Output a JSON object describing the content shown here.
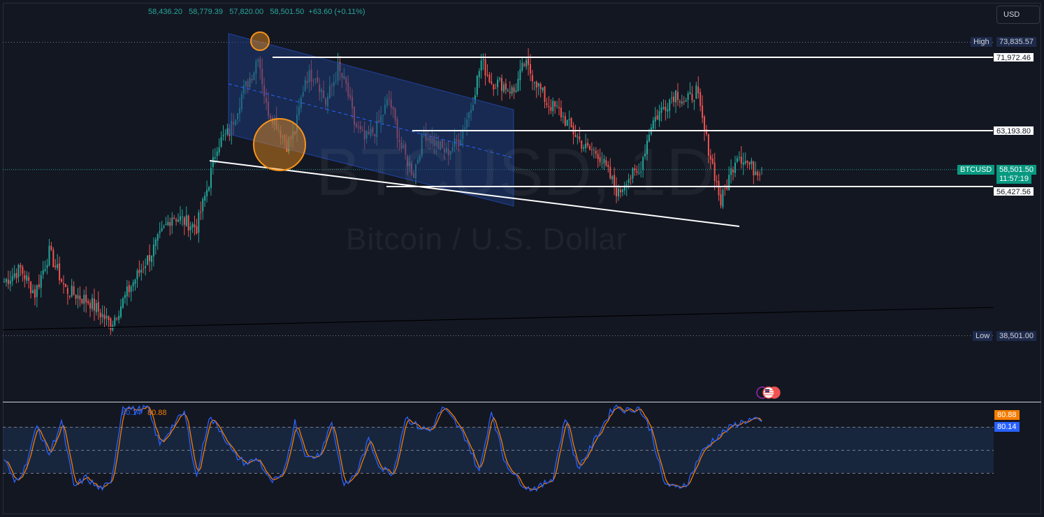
{
  "header": {
    "open": "58,436.20",
    "high": "58,779.39",
    "low": "57,820.00",
    "close": "58,501.50",
    "change": "+63.60 (+0.11%)"
  },
  "currency": "USD",
  "watermark": {
    "symbol": "BTCUSD, 1D",
    "description": "Bitcoin / U.S. Dollar"
  },
  "price_scale": {
    "high_label": "High",
    "high_value": "73,835.57",
    "low_label": "Low",
    "low_value": "38,501.00",
    "symbol_label": "BTCUSD",
    "last_price": "58,501.50",
    "countdown": "11:57:19",
    "levels": [
      "71,972.46",
      "63,193.80",
      "56,427.56"
    ]
  },
  "indicator": {
    "k_value": "80.14",
    "d_value": "80.88",
    "k_color": "#2962ff",
    "d_color": "#f57c00"
  },
  "colors": {
    "background": "#131722",
    "up": "#26a69a",
    "down": "#ef5350",
    "channel_fill": "#1e3a78",
    "highlight": "#f7931a"
  },
  "chart_data": {
    "type": "candlestick",
    "symbol": "BTCUSD",
    "interval": "1D",
    "y_range": [
      38501.0,
      73835.57
    ],
    "last": {
      "open": 58436.2,
      "high": 58779.39,
      "low": 57820.0,
      "close": 58501.5
    },
    "horizontal_levels": [
      71972.46,
      63193.8,
      56427.56
    ],
    "period_high": 73835.57,
    "period_low": 38501.0,
    "anchors": [
      [
        0,
        45000
      ],
      [
        8,
        46500
      ],
      [
        15,
        43500
      ],
      [
        22,
        48500
      ],
      [
        30,
        44000
      ],
      [
        42,
        42500
      ],
      [
        52,
        39800
      ],
      [
        62,
        44500
      ],
      [
        72,
        48500
      ],
      [
        82,
        53000
      ],
      [
        94,
        51500
      ],
      [
        100,
        57000
      ],
      [
        104,
        61500
      ],
      [
        110,
        63000
      ],
      [
        116,
        67500
      ],
      [
        122,
        70500
      ],
      [
        124,
        72500
      ],
      [
        128,
        66000
      ],
      [
        133,
        64000
      ],
      [
        138,
        61500
      ],
      [
        142,
        63000
      ],
      [
        147,
        69500
      ],
      [
        152,
        70000
      ],
      [
        157,
        66500
      ],
      [
        163,
        70500
      ],
      [
        167,
        68500
      ],
      [
        171,
        64000
      ],
      [
        176,
        62000
      ],
      [
        182,
        63500
      ],
      [
        188,
        67000
      ],
      [
        194,
        61000
      ],
      [
        200,
        58000
      ],
      [
        205,
        63000
      ],
      [
        211,
        61500
      ],
      [
        216,
        60500
      ],
      [
        222,
        62000
      ],
      [
        228,
        66000
      ],
      [
        233,
        71500
      ],
      [
        238,
        69000
      ],
      [
        243,
        68800
      ],
      [
        249,
        67800
      ],
      [
        254,
        71200
      ],
      [
        259,
        69500
      ],
      [
        265,
        66500
      ],
      [
        271,
        65500
      ],
      [
        278,
        63000
      ],
      [
        284,
        61000
      ],
      [
        290,
        60500
      ],
      [
        296,
        57500
      ],
      [
        300,
        55500
      ],
      [
        304,
        57500
      ],
      [
        310,
        58000
      ],
      [
        316,
        64000
      ],
      [
        322,
        66000
      ],
      [
        328,
        67800
      ],
      [
        333,
        66500
      ],
      [
        338,
        68000
      ],
      [
        342,
        63000
      ],
      [
        346,
        59000
      ],
      [
        350,
        54500
      ],
      [
        354,
        57500
      ],
      [
        358,
        60500
      ],
      [
        362,
        59500
      ],
      [
        366,
        58500
      ],
      [
        370,
        58500
      ]
    ],
    "stochastic": {
      "k_last": 80.14,
      "d_last": 80.88,
      "bands": [
        80,
        50,
        20
      ],
      "anchors": [
        [
          0,
          40
        ],
        [
          5,
          15
        ],
        [
          10,
          30
        ],
        [
          16,
          75
        ],
        [
          22,
          45
        ],
        [
          28,
          80
        ],
        [
          34,
          10
        ],
        [
          40,
          20
        ],
        [
          46,
          8
        ],
        [
          52,
          12
        ],
        [
          58,
          98
        ],
        [
          64,
          92
        ],
        [
          70,
          95
        ],
        [
          76,
          55
        ],
        [
          82,
          75
        ],
        [
          88,
          90
        ],
        [
          94,
          20
        ],
        [
          100,
          85
        ],
        [
          106,
          70
        ],
        [
          112,
          45
        ],
        [
          118,
          35
        ],
        [
          124,
          40
        ],
        [
          130,
          15
        ],
        [
          136,
          20
        ],
        [
          142,
          80
        ],
        [
          148,
          40
        ],
        [
          154,
          45
        ],
        [
          160,
          80
        ],
        [
          166,
          10
        ],
        [
          172,
          25
        ],
        [
          178,
          60
        ],
        [
          184,
          30
        ],
        [
          190,
          25
        ],
        [
          196,
          85
        ],
        [
          202,
          75
        ],
        [
          208,
          70
        ],
        [
          214,
          95
        ],
        [
          220,
          80
        ],
        [
          226,
          60
        ],
        [
          232,
          25
        ],
        [
          238,
          92
        ],
        [
          244,
          40
        ],
        [
          250,
          20
        ],
        [
          256,
          8
        ],
        [
          262,
          10
        ],
        [
          268,
          20
        ],
        [
          274,
          85
        ],
        [
          280,
          30
        ],
        [
          286,
          50
        ],
        [
          292,
          75
        ],
        [
          298,
          97
        ],
        [
          304,
          92
        ],
        [
          310,
          95
        ],
        [
          316,
          70
        ],
        [
          322,
          15
        ],
        [
          328,
          8
        ],
        [
          334,
          15
        ],
        [
          340,
          45
        ],
        [
          346,
          60
        ],
        [
          352,
          70
        ],
        [
          358,
          78
        ],
        [
          364,
          82
        ],
        [
          370,
          80
        ]
      ]
    }
  }
}
